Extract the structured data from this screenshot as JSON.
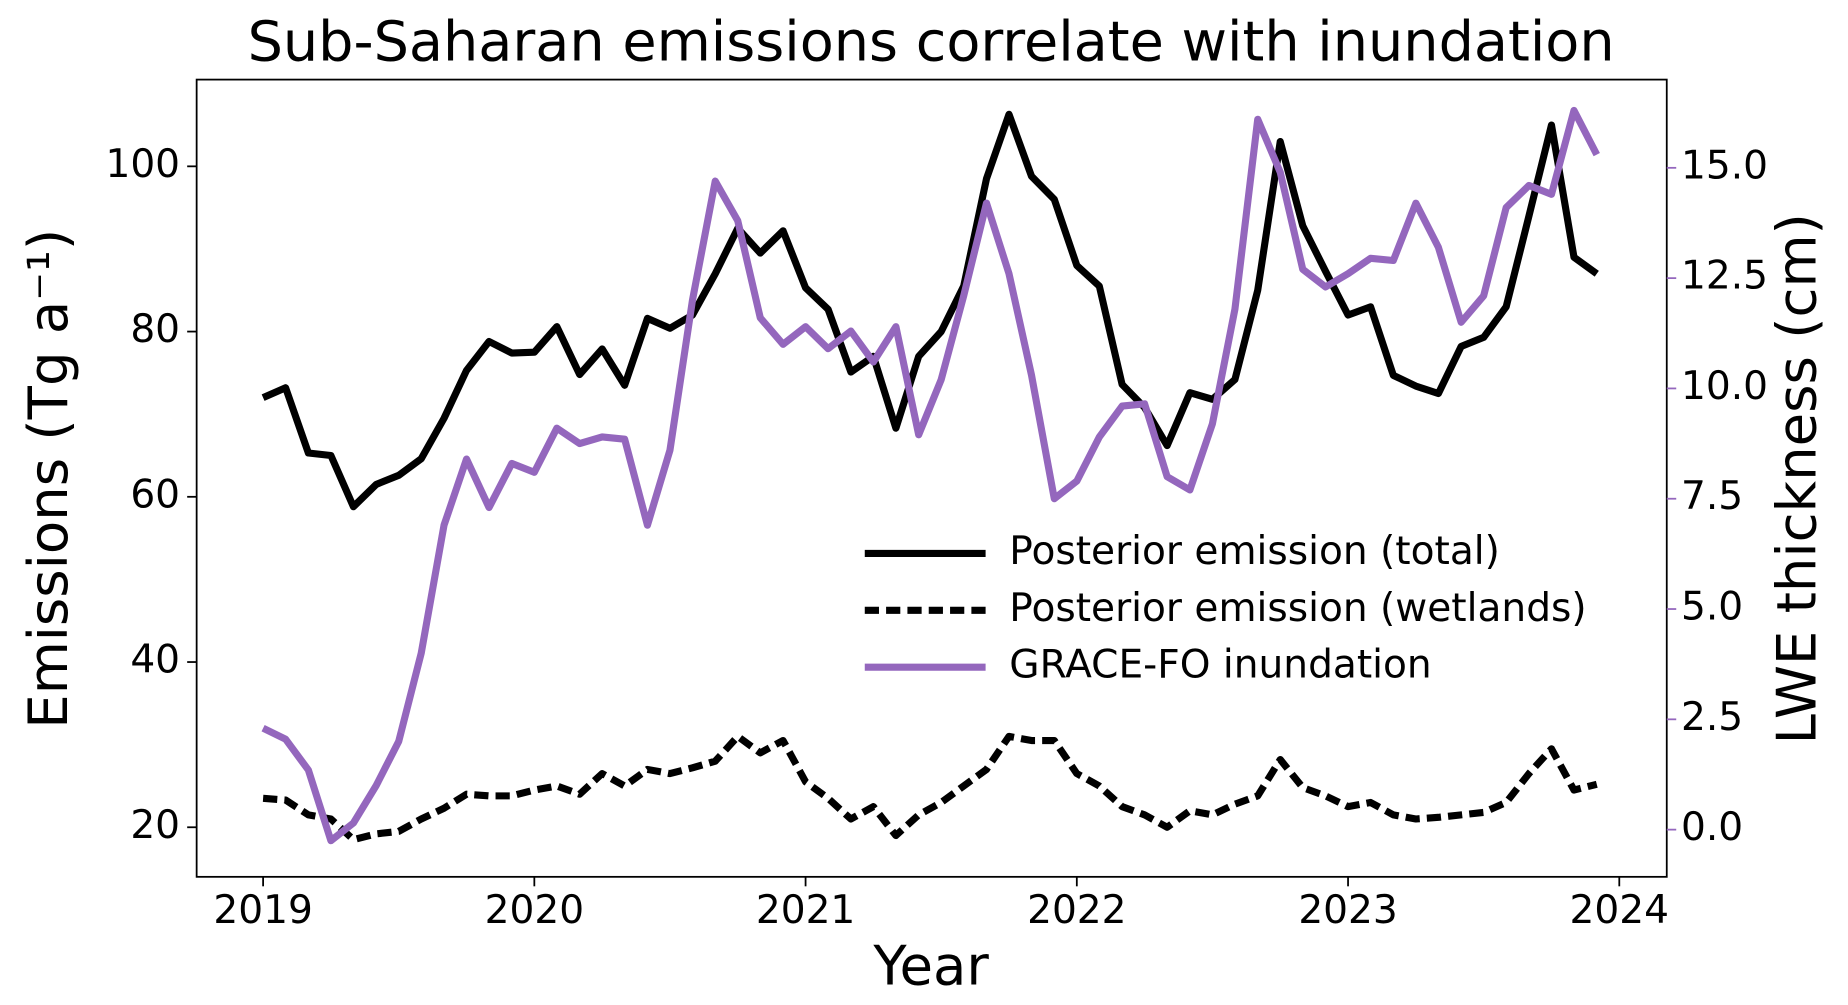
{
  "chart_data": {
    "type": "line",
    "title": "Sub-Saharan emissions correlate with inundation",
    "x_label": "Year",
    "y_label": "Emissions (Tg a⁻¹)",
    "y2_label": "LWE thickness (cm)",
    "y2_color": "#9467bd",
    "legend": "center right",
    "x": [
      2019,
      2019.083,
      2019.167,
      2019.25,
      2019.333,
      2019.417,
      2019.5,
      2019.583,
      2019.667,
      2019.75,
      2019.833,
      2019.917,
      2020,
      2020.083,
      2020.167,
      2020.25,
      2020.333,
      2020.417,
      2020.5,
      2020.583,
      2020.667,
      2020.75,
      2020.833,
      2020.917,
      2021,
      2021.083,
      2021.167,
      2021.25,
      2021.333,
      2021.417,
      2021.5,
      2021.583,
      2021.667,
      2021.75,
      2021.833,
      2021.917,
      2022,
      2022.083,
      2022.167,
      2022.25,
      2022.333,
      2022.417,
      2022.5,
      2022.583,
      2022.667,
      2022.75,
      2022.833,
      2022.917,
      2023,
      2023.083,
      2023.167,
      2023.25,
      2023.333,
      2023.417,
      2023.5,
      2023.583,
      2023.667,
      2023.75,
      2023.833,
      2023.917
    ],
    "series": [
      {
        "name": "Posterior emission (total)",
        "color": "#000000",
        "linestyle": "solid",
        "values": [
          72,
          73.2,
          65.3,
          65,
          58.8,
          61.5,
          62.6,
          64.6,
          69.5,
          75.3,
          78.8,
          77.4,
          77.5,
          80.6,
          74.8,
          77.9,
          73.5,
          81.6,
          80.4,
          82,
          87,
          92.5,
          89.5,
          92.2,
          85.3,
          82.7,
          75.1,
          77,
          68.3,
          77,
          80,
          85.5,
          98.5,
          106.3,
          98.8,
          96,
          88,
          85.5,
          73.6,
          70.8,
          66.2,
          72.6,
          71.8,
          74.2,
          85,
          103,
          92.8,
          87.3,
          82,
          83,
          74.7,
          73.4,
          72.5,
          78.2,
          79.3,
          83,
          94,
          105,
          89,
          87
        ]
      },
      {
        "name": "Posterior emission (wetlands)",
        "color": "#000000",
        "linestyle": "dotted",
        "values": [
          23.5,
          23.3,
          21.5,
          21,
          18.5,
          19.2,
          19.5,
          21,
          22.3,
          24,
          23.8,
          23.8,
          24.5,
          25,
          24,
          26.5,
          25,
          27,
          26.5,
          27.2,
          28,
          31,
          29,
          30.5,
          25.5,
          23.5,
          21,
          22.5,
          19,
          21.5,
          23,
          25,
          27,
          31,
          30.5,
          30.5,
          26.5,
          25,
          22.5,
          21.5,
          20,
          22,
          21.5,
          22.8,
          23.8,
          28.2,
          24.8,
          23.8,
          22.5,
          23,
          21.5,
          21,
          21.2,
          21.5,
          21.8,
          23,
          26.5,
          29.5,
          24.5,
          25.2
        ]
      },
      {
        "name": "GRACE-FO inundation",
        "color": "#9467bd",
        "linestyle": "solid",
        "axis": "y2",
        "values": [
          2.3,
          2.05,
          1.35,
          -0.25,
          0.15,
          1.0,
          2.0,
          4.0,
          6.9,
          8.4,
          7.3,
          8.3,
          8.1,
          9.1,
          8.75,
          8.9,
          8.85,
          6.9,
          8.6,
          12,
          14.7,
          13.8,
          11.6,
          11,
          11.4,
          10.9,
          11.3,
          10.6,
          11.4,
          8.95,
          10.2,
          12.1,
          14.2,
          12.6,
          10.3,
          7.5,
          7.9,
          8.9,
          9.6,
          9.65,
          8.0,
          7.7,
          9.2,
          11.8,
          16.1,
          14.9,
          12.7,
          12.3,
          12.6,
          12.95,
          12.9,
          14.2,
          13.2,
          11.5,
          12.1,
          14.1,
          14.6,
          14.4,
          16.3,
          15.3
        ]
      }
    ],
    "xlim": [
      2018.755,
      2024.175
    ],
    "xticks": [
      2019,
      2020,
      2021,
      2022,
      2023,
      2024
    ],
    "ylim": [
      14,
      110.5
    ],
    "yticks": [
      20,
      40,
      60,
      80,
      100
    ],
    "y2lim": [
      -1.07,
      17
    ],
    "y2ticks": [
      {
        "value": 0,
        "label": "0.0"
      },
      2.5,
      {
        "value": 5,
        "label": "5.0"
      },
      7.5,
      {
        "value": 10,
        "label": "10.0"
      },
      12.5,
      {
        "value": 15,
        "label": "15.0"
      }
    ]
  }
}
